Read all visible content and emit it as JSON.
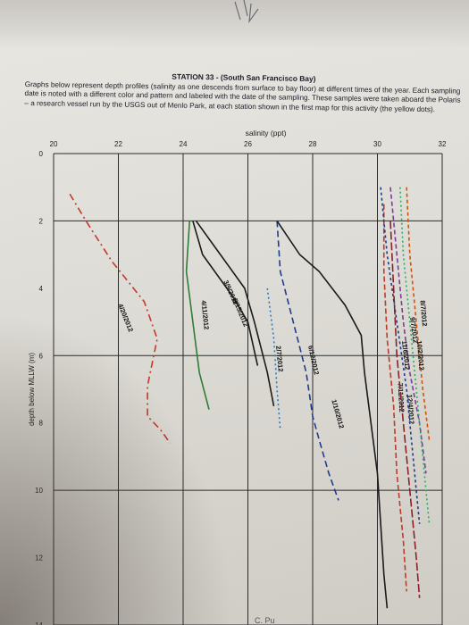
{
  "header": {
    "title": "STATION 33 - (South San Francisco Bay)",
    "paragraph": "Graphs below represent depth profiles (salinity as one descends from surface to bay floor) at different times of the year. Each sampling date is noted with a different color and pattern and labeled with the date of the sampling. These samples were taken aboard the Polaris – a research vessel run by the USGS out of Menlo Park, at each station shown in the first map for this activity (the yellow dots)."
  },
  "footer_scrawl": "C. Pu",
  "chart_data": {
    "type": "line",
    "title": "",
    "xlabel": "salinity (ppt)",
    "ylabel": "depth below MLLW (m)",
    "xlim": [
      20,
      32
    ],
    "ylim": [
      0,
      14
    ],
    "y_inverted": true,
    "x_ticks": [
      20,
      22,
      24,
      26,
      28,
      30,
      32
    ],
    "y_ticks": [
      0,
      2,
      4,
      6,
      8,
      10,
      12,
      14
    ],
    "grid": true,
    "series": [
      {
        "name": "4/20/2012",
        "color": "#c0392b",
        "dash": "8,4,2,4",
        "points": [
          [
            20.5,
            1.2
          ],
          [
            21.0,
            2.0
          ],
          [
            21.8,
            3.2
          ],
          [
            22.8,
            4.4
          ],
          [
            23.2,
            5.5
          ],
          [
            22.9,
            6.9
          ],
          [
            22.9,
            7.8
          ],
          [
            23.3,
            8.2
          ],
          [
            23.6,
            8.6
          ]
        ]
      },
      {
        "name": "3/9/2012",
        "color": "#1a1a1a",
        "dash": "",
        "points": [
          [
            24.3,
            2.0
          ],
          [
            24.6,
            3.0
          ],
          [
            25.5,
            4.2
          ],
          [
            26.0,
            5.0
          ],
          [
            26.3,
            6.3
          ]
        ]
      },
      {
        "name": "5/15/2012",
        "color": "#1a1a1a",
        "dash": "",
        "points": [
          [
            24.4,
            2.0
          ],
          [
            25.0,
            2.8
          ],
          [
            25.9,
            4.0
          ],
          [
            26.2,
            5.0
          ],
          [
            26.6,
            6.5
          ],
          [
            26.8,
            7.5
          ]
        ]
      },
      {
        "name": "4/11/2012",
        "color": "#2e7d32",
        "dash": "",
        "points": [
          [
            24.2,
            2.0
          ],
          [
            24.1,
            3.5
          ],
          [
            24.3,
            5.0
          ],
          [
            24.5,
            6.5
          ],
          [
            24.8,
            7.6
          ]
        ]
      },
      {
        "name": "6/12/2012",
        "color": "#1f3b8f",
        "dash": "7,4",
        "points": [
          [
            26.9,
            2.0
          ],
          [
            27.0,
            3.5
          ],
          [
            27.4,
            5.0
          ],
          [
            27.8,
            6.5
          ],
          [
            28.0,
            7.8
          ],
          [
            28.2,
            8.5
          ],
          [
            28.5,
            9.5
          ],
          [
            28.8,
            10.3
          ]
        ]
      },
      {
        "name": "1/10/2012",
        "color": "#1a1a1a",
        "dash": "",
        "points": [
          [
            26.9,
            2.0
          ],
          [
            27.6,
            3.0
          ],
          [
            28.2,
            3.5
          ],
          [
            29.0,
            4.5
          ],
          [
            29.5,
            5.4
          ],
          [
            29.6,
            6.5
          ],
          [
            29.8,
            8.0
          ],
          [
            30.0,
            9.5
          ],
          [
            30.1,
            11.0
          ],
          [
            30.2,
            12.5
          ],
          [
            30.3,
            13.5
          ]
        ]
      },
      {
        "name": "2/7/2012",
        "color": "#2b7bbf",
        "dash": "2,3",
        "points": [
          [
            26.6,
            4.0
          ],
          [
            26.8,
            5.5
          ],
          [
            26.9,
            7.0
          ],
          [
            27.0,
            8.2
          ]
        ]
      },
      {
        "name": "7/11/2012",
        "color": "#c0392b",
        "dash": "6,3",
        "points": [
          [
            30.2,
            1.5
          ],
          [
            30.2,
            3.5
          ],
          [
            30.3,
            5.5
          ],
          [
            30.5,
            7.5
          ],
          [
            30.6,
            9.5
          ],
          [
            30.8,
            11.5
          ],
          [
            30.9,
            13.0
          ]
        ]
      },
      {
        "name": "12/4/2012",
        "color": "#8e1f2a",
        "dash": "9,3",
        "points": [
          [
            30.4,
            2.0
          ],
          [
            30.5,
            4.0
          ],
          [
            30.6,
            6.0
          ],
          [
            30.8,
            8.0
          ],
          [
            31.0,
            10.0
          ],
          [
            31.2,
            12.0
          ],
          [
            31.3,
            13.2
          ]
        ]
      },
      {
        "name": "9/7/2012",
        "color": "#7d3c98",
        "dash": "5,3",
        "points": [
          [
            30.4,
            1.0
          ],
          [
            30.6,
            3.0
          ],
          [
            30.8,
            5.0
          ],
          [
            31.0,
            6.5
          ],
          [
            31.3,
            8.0
          ],
          [
            31.5,
            9.5
          ]
        ]
      },
      {
        "name": "8/7/2012",
        "color": "#d35400",
        "dash": "4,3",
        "points": [
          [
            30.9,
            1.0
          ],
          [
            31.0,
            3.0
          ],
          [
            31.2,
            5.0
          ],
          [
            31.4,
            7.0
          ],
          [
            31.6,
            8.5
          ]
        ]
      },
      {
        "name": "10/2/2012",
        "color": "#27ae60",
        "dash": "2,3",
        "points": [
          [
            30.7,
            1.0
          ],
          [
            30.8,
            3.0
          ],
          [
            31.0,
            5.0
          ],
          [
            31.2,
            7.0
          ],
          [
            31.4,
            9.0
          ],
          [
            31.6,
            11.0
          ]
        ]
      },
      {
        "name": "11/6/2012",
        "color": "#1f3b8f",
        "dash": "3,3",
        "points": [
          [
            30.1,
            1.0
          ],
          [
            30.3,
            3.0
          ],
          [
            30.6,
            5.0
          ],
          [
            30.9,
            7.0
          ],
          [
            31.1,
            9.0
          ],
          [
            31.3,
            11.0
          ]
        ]
      }
    ]
  }
}
